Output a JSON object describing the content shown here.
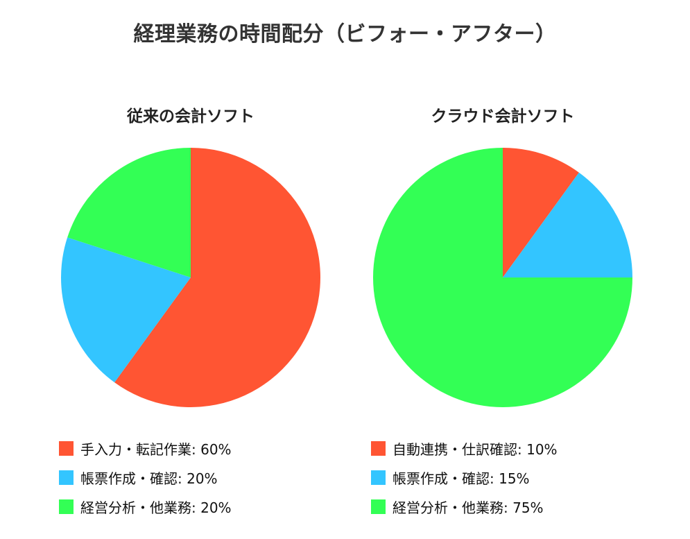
{
  "page": {
    "title": "経理業務の時間配分（ビフォー・アフター）"
  },
  "colors": {
    "red": "#ff5533",
    "blue": "#33c5ff",
    "green": "#33ff55"
  },
  "chart_data": [
    {
      "type": "pie",
      "title": "従来の会計ソフト",
      "slices": [
        {
          "label": "手入力・転記作業",
          "value": 60,
          "legend": "手入力・転記作業: 60%",
          "color": "#ff5533"
        },
        {
          "label": "帳票作成・確認",
          "value": 20,
          "legend": "帳票作成・確認: 20%",
          "color": "#33c5ff"
        },
        {
          "label": "経営分析・他業務",
          "value": 20,
          "legend": "経営分析・他業務: 20%",
          "color": "#33ff55"
        }
      ],
      "legend_position": "bottom"
    },
    {
      "type": "pie",
      "title": "クラウド会計ソフト",
      "slices": [
        {
          "label": "自動連携・仕訳確認",
          "value": 10,
          "legend": "自動連携・仕訳確認: 10%",
          "color": "#ff5533"
        },
        {
          "label": "帳票作成・確認",
          "value": 15,
          "legend": "帳票作成・確認: 15%",
          "color": "#33c5ff"
        },
        {
          "label": "経営分析・他業務",
          "value": 75,
          "legend": "経営分析・他業務: 75%",
          "color": "#33ff55"
        }
      ],
      "legend_position": "bottom"
    }
  ]
}
